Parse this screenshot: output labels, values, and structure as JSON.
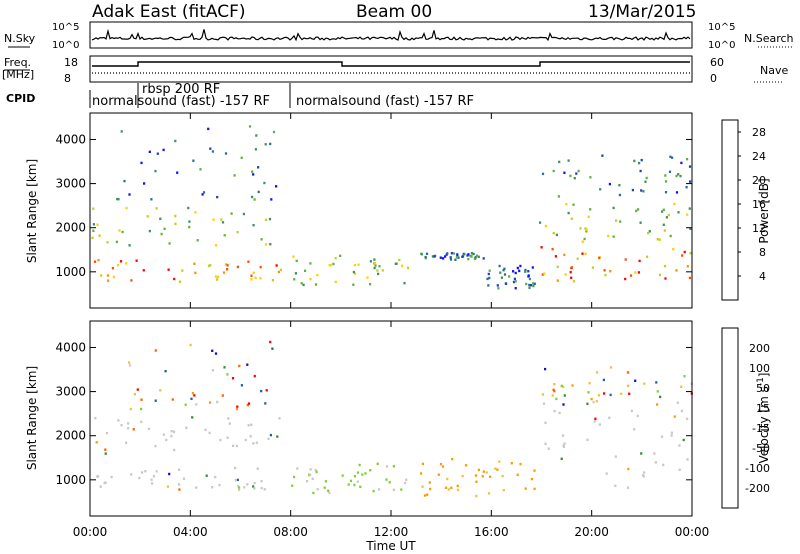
{
  "header": {
    "station": "Adak East (fitACF)",
    "beam": "Beam 00",
    "date": "13/Mar/2015"
  },
  "strips": {
    "nsky_label": "N.Sky",
    "nsearch_label": "N.Search",
    "noise_ticks": [
      "10^5",
      "10^0"
    ],
    "freq_label_1": "Freq.",
    "freq_label_2": "[MHz]",
    "freq_ticks": [
      "18",
      "8"
    ],
    "nave_label": "Nave",
    "nave_ticks": [
      "60",
      "0"
    ],
    "cpid_label": "CPID",
    "cpid_segments": [
      "normalsound (fast) -157 RF",
      "rbsp 200 RF",
      "normalsound (fast) -157 RF"
    ]
  },
  "chart_data": [
    {
      "type": "heatmap",
      "panel": "power",
      "title": "",
      "xlabel": "Time UT",
      "ylabel": "Slant Range [km]",
      "x_ticks": [
        "00:00",
        "04:00",
        "08:00",
        "12:00",
        "16:00",
        "20:00",
        "00:00"
      ],
      "xlim_hours": [
        0,
        24
      ],
      "y_ticks": [
        1000,
        2000,
        3000,
        4000
      ],
      "ylim_km": [
        180,
        4600
      ],
      "colorbar": {
        "label": "Power [dB]",
        "ticks": [
          4,
          8,
          12,
          16,
          20,
          24,
          28
        ],
        "range": [
          0,
          30
        ],
        "colors": [
          "#1010ff",
          "#2040c0",
          "#2e6e8c",
          "#3e9060",
          "#60b040",
          "#c0d020",
          "#ffd000",
          "#ff9000",
          "#ff5000",
          "#ff0000"
        ]
      },
      "echo_regions_hours_km": [
        {
          "t": [
            0.0,
            7.6
          ],
          "r": [
            800,
            1300
          ],
          "level": "high"
        },
        {
          "t": [
            0.0,
            7.6
          ],
          "r": [
            1600,
            2500
          ],
          "level": "medium"
        },
        {
          "t": [
            1.0,
            7.5
          ],
          "r": [
            2600,
            4400
          ],
          "level": "low"
        },
        {
          "t": [
            8.0,
            12.7
          ],
          "r": [
            700,
            1400
          ],
          "level": "medium"
        },
        {
          "t": [
            13.0,
            15.7
          ],
          "r": [
            1300,
            1450
          ],
          "level": "low"
        },
        {
          "t": [
            15.8,
            17.7
          ],
          "r": [
            650,
            1200
          ],
          "level": "low"
        },
        {
          "t": [
            17.9,
            24.0
          ],
          "r": [
            800,
            1600
          ],
          "level": "high"
        },
        {
          "t": [
            17.9,
            24.0
          ],
          "r": [
            1700,
            2600
          ],
          "level": "medium"
        },
        {
          "t": [
            18.0,
            24.0
          ],
          "r": [
            2700,
            3700
          ],
          "level": "low"
        }
      ]
    },
    {
      "type": "heatmap",
      "panel": "velocity",
      "title": "",
      "xlabel": "Time UT",
      "ylabel": "Slant Range [km]",
      "x_ticks": [
        "00:00",
        "04:00",
        "08:00",
        "12:00",
        "16:00",
        "20:00",
        "00:00"
      ],
      "xlim_hours": [
        0,
        24
      ],
      "y_ticks": [
        1000,
        2000,
        3000,
        4000
      ],
      "ylim_km": [
        180,
        4600
      ],
      "colorbar": {
        "label": "Velocity [m s-1]",
        "ticks": [
          -200,
          -100,
          -50,
          -15,
          15,
          50,
          100,
          200
        ],
        "range": [
          -250,
          250
        ],
        "colors": [
          "#ff0000",
          "#ff6000",
          "#ff9a00",
          "#f0c040",
          "#c8c8c8",
          "#80d030",
          "#309030",
          "#2060a0",
          "#1010c0"
        ]
      },
      "echo_regions_hours_km": [
        {
          "t": [
            0.0,
            7.6
          ],
          "r": [
            800,
            1300
          ],
          "level": "ground"
        },
        {
          "t": [
            0.0,
            7.6
          ],
          "r": [
            1500,
            2500
          ],
          "level": "ground"
        },
        {
          "t": [
            1.0,
            7.5
          ],
          "r": [
            2600,
            4200
          ],
          "level": "mixed"
        },
        {
          "t": [
            8.0,
            12.7
          ],
          "r": [
            700,
            1400
          ],
          "level": "positive"
        },
        {
          "t": [
            13.0,
            17.7
          ],
          "r": [
            650,
            1500
          ],
          "level": "negative"
        },
        {
          "t": [
            17.9,
            24.0
          ],
          "r": [
            800,
            2600
          ],
          "level": "ground"
        },
        {
          "t": [
            18.0,
            24.0
          ],
          "r": [
            2700,
            3600
          ],
          "level": "mixed"
        }
      ]
    }
  ]
}
